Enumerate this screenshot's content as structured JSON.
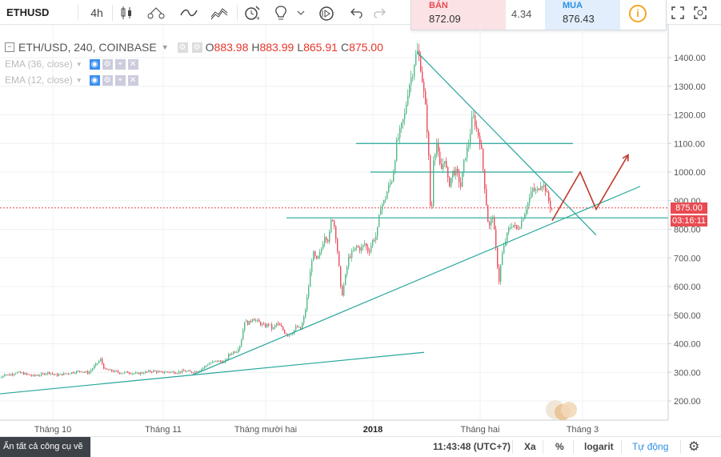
{
  "toolbar": {
    "symbol": "ETHUSD",
    "interval": "4h",
    "icons": [
      "candles-icon",
      "compare-icon",
      "indicators-icon",
      "templates-icon",
      "alert-icon",
      "ideas-icon",
      "replay-icon",
      "undo-icon",
      "redo-icon"
    ],
    "sell_label": "BÁN",
    "sell_price": "872.09",
    "spread": "4.34",
    "buy_label": "MUA",
    "buy_price": "876.43",
    "window_icons": [
      "plus-icon",
      "minus-icon",
      "fullscreen-icon",
      "snapshot-icon"
    ]
  },
  "legend": {
    "title": "ETH/USD, 240, COINBASE",
    "open_label": "O",
    "open": "883.98",
    "high_label": "H",
    "high": "883.99",
    "low_label": "L",
    "low": "865.91",
    "close_label": "C",
    "close": "875.00",
    "ema1": "EMA (36, close)",
    "ema2": "EMA (12, close)"
  },
  "price_labels": {
    "current": "875.00",
    "countdown": "03:16:11"
  },
  "status": {
    "draw_tools": "Ẩn tất cả công cụ vẽ",
    "time": "11:43:48 (UTC+7)",
    "ext": "Xa",
    "percent": "%",
    "log": "logarit",
    "auto": "Tự động"
  },
  "chart_data": {
    "type": "candlestick",
    "symbol": "ETH/USD",
    "timeframe": "240",
    "exchange": "COINBASE",
    "yticks": [
      200,
      300,
      400,
      500,
      600,
      700,
      800,
      900,
      1000,
      1100,
      1200,
      1300,
      1400
    ],
    "ytick_labels": [
      "200.00",
      "300.00",
      "400.00",
      "500.00",
      "600.00",
      "700.00",
      "800.00",
      "900.00",
      "1000.00",
      "1100.00",
      "1200.00",
      "1300.00",
      "1400.00"
    ],
    "xtick_labels": [
      "Tháng 10",
      "Tháng 11",
      "Tháng mười hai",
      "2018",
      "Tháng hai",
      "Tháng 3"
    ],
    "ylim": [
      150,
      1450
    ],
    "current_price": 875.0,
    "colors": {
      "up": "#53b987",
      "down": "#eb4d5c",
      "trendline": "#26a69a",
      "arrow": "#c0392b",
      "current_line": "#e84b52"
    },
    "price_path": [
      [
        0,
        280
      ],
      [
        5,
        295
      ],
      [
        10,
        290
      ],
      [
        20,
        300
      ],
      [
        30,
        295
      ],
      [
        40,
        288
      ],
      [
        50,
        292
      ],
      [
        60,
        300
      ],
      [
        70,
        290
      ],
      [
        80,
        295
      ],
      [
        90,
        300
      ],
      [
        100,
        305
      ],
      [
        110,
        298
      ],
      [
        120,
        330
      ],
      [
        125,
        345
      ],
      [
        130,
        310
      ],
      [
        140,
        305
      ],
      [
        150,
        298
      ],
      [
        160,
        300
      ],
      [
        170,
        295
      ],
      [
        180,
        300
      ],
      [
        190,
        305
      ],
      [
        200,
        300
      ],
      [
        210,
        302
      ],
      [
        220,
        300
      ],
      [
        230,
        305
      ],
      [
        240,
        300
      ],
      [
        250,
        310
      ],
      [
        260,
        330
      ],
      [
        270,
        340
      ],
      [
        280,
        335
      ],
      [
        285,
        360
      ],
      [
        290,
        370
      ],
      [
        295,
        375
      ],
      [
        300,
        400
      ],
      [
        305,
        480
      ],
      [
        310,
        470
      ],
      [
        315,
        490
      ],
      [
        320,
        480
      ],
      [
        325,
        470
      ],
      [
        330,
        460
      ],
      [
        335,
        470
      ],
      [
        340,
        450
      ],
      [
        345,
        470
      ],
      [
        350,
        460
      ],
      [
        355,
        440
      ],
      [
        360,
        430
      ],
      [
        365,
        440
      ],
      [
        370,
        460
      ],
      [
        375,
        450
      ],
      [
        380,
        500
      ],
      [
        385,
        600
      ],
      [
        390,
        720
      ],
      [
        395,
        690
      ],
      [
        400,
        720
      ],
      [
        405,
        780
      ],
      [
        410,
        760
      ],
      [
        414,
        850
      ],
      [
        418,
        800
      ],
      [
        422,
        700
      ],
      [
        426,
        560
      ],
      [
        430,
        620
      ],
      [
        435,
        700
      ],
      [
        440,
        720
      ],
      [
        445,
        740
      ],
      [
        450,
        730
      ],
      [
        455,
        750
      ],
      [
        460,
        720
      ],
      [
        465,
        760
      ],
      [
        470,
        780
      ],
      [
        475,
        880
      ],
      [
        480,
        900
      ],
      [
        485,
        950
      ],
      [
        490,
        980
      ],
      [
        495,
        1100
      ],
      [
        500,
        1150
      ],
      [
        505,
        1200
      ],
      [
        510,
        1300
      ],
      [
        515,
        1350
      ],
      [
        518,
        1400
      ],
      [
        521,
        1420
      ],
      [
        524,
        1390
      ],
      [
        528,
        1300
      ],
      [
        532,
        1200
      ],
      [
        535,
        1050
      ],
      [
        538,
        800
      ],
      [
        541,
        1050
      ],
      [
        545,
        1100
      ],
      [
        550,
        1000
      ],
      [
        555,
        1050
      ],
      [
        560,
        950
      ],
      [
        565,
        1000
      ],
      [
        570,
        1000
      ],
      [
        575,
        950
      ],
      [
        580,
        1050
      ],
      [
        585,
        1100
      ],
      [
        590,
        1200
      ],
      [
        595,
        1150
      ],
      [
        600,
        1100
      ],
      [
        605,
        950
      ],
      [
        610,
        800
      ],
      [
        615,
        850
      ],
      [
        620,
        700
      ],
      [
        623,
        620
      ],
      [
        626,
        700
      ],
      [
        630,
        750
      ],
      [
        635,
        800
      ],
      [
        640,
        820
      ],
      [
        645,
        800
      ],
      [
        650,
        820
      ],
      [
        655,
        860
      ],
      [
        660,
        900
      ],
      [
        665,
        940
      ],
      [
        670,
        930
      ],
      [
        675,
        960
      ],
      [
        680,
        950
      ],
      [
        685,
        900
      ],
      [
        688,
        870
      ],
      [
        690,
        875
      ]
    ],
    "horizontal_lines": [
      1100,
      1000,
      840
    ],
    "trendlines": [
      {
        "name": "long-support",
        "from": [
          0,
          225
        ],
        "to": [
          530,
          370
        ]
      },
      {
        "name": "rising-support",
        "from": [
          240,
          290
        ],
        "to": [
          800,
          950
        ]
      },
      {
        "name": "falling-resistance",
        "from": [
          521,
          1420
        ],
        "to": [
          745,
          780
        ]
      }
    ],
    "forecast_arrow": [
      [
        690,
        830
      ],
      [
        725,
        1000
      ],
      [
        745,
        870
      ],
      [
        785,
        1060
      ]
    ]
  }
}
